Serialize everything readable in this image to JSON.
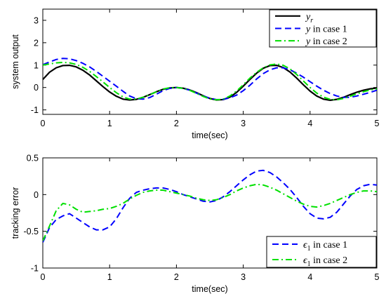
{
  "chart_data": [
    {
      "type": "line",
      "xlabel": "time(sec)",
      "ylabel": "system output",
      "xlim": [
        0,
        5
      ],
      "ylim": [
        -1.2,
        3.5
      ],
      "xticks": [
        0,
        1,
        2,
        3,
        4,
        5
      ],
      "yticks": [
        -1,
        0,
        1,
        2,
        3
      ],
      "grid": false,
      "legend_position": "top-right",
      "series": [
        {
          "name": "y_r",
          "legend": {
            "main": "y",
            "sub": "r",
            "suffix": ""
          },
          "color": "#000000",
          "style": "solid",
          "x": [
            0,
            0.1,
            0.2,
            0.3,
            0.4,
            0.5,
            0.6,
            0.7,
            0.8,
            0.9,
            1.0,
            1.1,
            1.2,
            1.3,
            1.4,
            1.5,
            1.6,
            1.7,
            1.8,
            1.9,
            2.0,
            2.1,
            2.2,
            2.3,
            2.4,
            2.5,
            2.6,
            2.7,
            2.8,
            2.9,
            3.0,
            3.1,
            3.2,
            3.3,
            3.4,
            3.5,
            3.6,
            3.7,
            3.8,
            3.9,
            4.0,
            4.1,
            4.2,
            4.3,
            4.4,
            4.5,
            4.6,
            4.7,
            4.8,
            4.9,
            5.0
          ],
          "y": [
            0.36,
            0.68,
            0.88,
            0.98,
            0.99,
            0.92,
            0.77,
            0.56,
            0.3,
            0.04,
            -0.2,
            -0.39,
            -0.52,
            -0.56,
            -0.53,
            -0.44,
            -0.32,
            -0.19,
            -0.08,
            -0.02,
            0.0,
            -0.03,
            -0.11,
            -0.23,
            -0.37,
            -0.49,
            -0.56,
            -0.54,
            -0.43,
            -0.22,
            0.06,
            0.36,
            0.64,
            0.86,
            0.98,
            0.99,
            0.89,
            0.69,
            0.42,
            0.12,
            -0.16,
            -0.38,
            -0.52,
            -0.57,
            -0.53,
            -0.44,
            -0.32,
            -0.21,
            -0.12,
            -0.06,
            -0.02
          ]
        },
        {
          "name": "y in case 1",
          "legend": {
            "main": "y",
            "sub": "",
            "suffix": " in case 1"
          },
          "color": "#0000ff",
          "style": "dashed",
          "x": [
            0,
            0.1,
            0.2,
            0.3,
            0.4,
            0.5,
            0.6,
            0.7,
            0.8,
            0.9,
            1.0,
            1.1,
            1.2,
            1.3,
            1.4,
            1.5,
            1.6,
            1.7,
            1.8,
            1.9,
            2.0,
            2.1,
            2.2,
            2.3,
            2.4,
            2.5,
            2.6,
            2.7,
            2.8,
            2.9,
            3.0,
            3.1,
            3.2,
            3.3,
            3.4,
            3.5,
            3.6,
            3.7,
            3.8,
            3.9,
            4.0,
            4.1,
            4.2,
            4.3,
            4.4,
            4.5,
            4.6,
            4.7,
            4.8,
            4.9,
            5.0
          ],
          "y": [
            1.02,
            1.14,
            1.25,
            1.3,
            1.28,
            1.2,
            1.08,
            0.92,
            0.72,
            0.5,
            0.28,
            0.06,
            -0.17,
            -0.38,
            -0.5,
            -0.52,
            -0.45,
            -0.3,
            -0.14,
            -0.04,
            0.0,
            -0.04,
            -0.12,
            -0.25,
            -0.38,
            -0.48,
            -0.54,
            -0.53,
            -0.46,
            -0.34,
            -0.14,
            0.1,
            0.38,
            0.62,
            0.79,
            0.88,
            0.88,
            0.79,
            0.64,
            0.46,
            0.26,
            0.06,
            -0.12,
            -0.27,
            -0.38,
            -0.44,
            -0.44,
            -0.38,
            -0.3,
            -0.22,
            -0.12
          ]
        },
        {
          "name": "y in case 2",
          "legend": {
            "main": "y",
            "sub": "",
            "suffix": " in case 2"
          },
          "color": "#00e000",
          "style": "dashdot",
          "x": [
            0,
            0.1,
            0.2,
            0.3,
            0.4,
            0.5,
            0.6,
            0.7,
            0.8,
            0.9,
            1.0,
            1.1,
            1.2,
            1.3,
            1.4,
            1.5,
            1.6,
            1.7,
            1.8,
            1.9,
            2.0,
            2.1,
            2.2,
            2.3,
            2.4,
            2.5,
            2.6,
            2.7,
            2.8,
            2.9,
            3.0,
            3.1,
            3.2,
            3.3,
            3.4,
            3.5,
            3.6,
            3.7,
            3.8,
            3.9,
            4.0,
            4.1,
            4.2,
            4.3,
            4.4,
            4.5,
            4.6,
            4.7,
            4.8,
            4.9,
            5.0
          ],
          "y": [
            1.0,
            1.05,
            1.1,
            1.12,
            1.1,
            1.03,
            0.9,
            0.72,
            0.49,
            0.25,
            0.0,
            -0.23,
            -0.42,
            -0.52,
            -0.52,
            -0.44,
            -0.32,
            -0.19,
            -0.07,
            -0.01,
            0.0,
            -0.04,
            -0.13,
            -0.26,
            -0.4,
            -0.51,
            -0.55,
            -0.52,
            -0.38,
            -0.16,
            0.12,
            0.42,
            0.68,
            0.88,
            1.01,
            1.05,
            0.99,
            0.83,
            0.58,
            0.29,
            0.0,
            -0.25,
            -0.43,
            -0.53,
            -0.55,
            -0.49,
            -0.39,
            -0.28,
            -0.19,
            -0.11,
            -0.06
          ]
        }
      ]
    },
    {
      "type": "line",
      "xlabel": "time(sec)",
      "ylabel": "tracking error",
      "xlim": [
        0,
        5
      ],
      "ylim": [
        -1,
        0.5
      ],
      "xticks": [
        0,
        1,
        2,
        3,
        4,
        5
      ],
      "yticks": [
        -1,
        -0.5,
        0,
        0.5
      ],
      "grid": false,
      "legend_position": "bottom-right",
      "series": [
        {
          "name": "ε1 in case 1",
          "legend": {
            "main": "ϵ",
            "sub": "1",
            "suffix": " in case 1"
          },
          "color": "#0000ff",
          "style": "dashed",
          "x": [
            0,
            0.1,
            0.2,
            0.3,
            0.4,
            0.5,
            0.6,
            0.7,
            0.8,
            0.9,
            1.0,
            1.1,
            1.2,
            1.3,
            1.4,
            1.5,
            1.6,
            1.7,
            1.8,
            1.9,
            2.0,
            2.1,
            2.2,
            2.3,
            2.4,
            2.5,
            2.6,
            2.7,
            2.8,
            2.9,
            3.0,
            3.1,
            3.2,
            3.3,
            3.4,
            3.5,
            3.6,
            3.7,
            3.8,
            3.9,
            4.0,
            4.1,
            4.2,
            4.3,
            4.4,
            4.5,
            4.6,
            4.7,
            4.8,
            4.9,
            5.0
          ],
          "y": [
            -0.65,
            -0.45,
            -0.34,
            -0.29,
            -0.26,
            -0.32,
            -0.38,
            -0.44,
            -0.48,
            -0.48,
            -0.44,
            -0.33,
            -0.18,
            -0.05,
            0.03,
            0.06,
            0.08,
            0.09,
            0.09,
            0.07,
            0.04,
            0.0,
            -0.03,
            -0.06,
            -0.09,
            -0.1,
            -0.08,
            -0.03,
            0.04,
            0.12,
            0.2,
            0.27,
            0.32,
            0.33,
            0.3,
            0.24,
            0.16,
            0.07,
            -0.04,
            -0.16,
            -0.26,
            -0.32,
            -0.33,
            -0.31,
            -0.24,
            -0.13,
            -0.02,
            0.07,
            0.12,
            0.14,
            0.13
          ]
        },
        {
          "name": "ε1 in case 2",
          "legend": {
            "main": "ϵ",
            "sub": "1",
            "suffix": " in case 2"
          },
          "color": "#00e000",
          "style": "dashdot",
          "x": [
            0,
            0.1,
            0.2,
            0.3,
            0.4,
            0.5,
            0.6,
            0.7,
            0.8,
            0.9,
            1.0,
            1.1,
            1.2,
            1.3,
            1.4,
            1.5,
            1.6,
            1.7,
            1.8,
            1.9,
            2.0,
            2.1,
            2.2,
            2.3,
            2.4,
            2.5,
            2.6,
            2.7,
            2.8,
            2.9,
            3.0,
            3.1,
            3.2,
            3.3,
            3.4,
            3.5,
            3.6,
            3.7,
            3.8,
            3.9,
            4.0,
            4.1,
            4.2,
            4.3,
            4.4,
            4.5,
            4.6,
            4.7,
            4.8,
            4.9,
            5.0
          ],
          "y": [
            -0.63,
            -0.43,
            -0.22,
            -0.12,
            -0.14,
            -0.2,
            -0.24,
            -0.23,
            -0.22,
            -0.2,
            -0.19,
            -0.16,
            -0.12,
            -0.06,
            -0.01,
            0.03,
            0.05,
            0.06,
            0.06,
            0.04,
            0.02,
            0.0,
            -0.02,
            -0.05,
            -0.07,
            -0.08,
            -0.07,
            -0.04,
            0.0,
            0.05,
            0.09,
            0.12,
            0.14,
            0.13,
            0.1,
            0.06,
            0.01,
            -0.04,
            -0.09,
            -0.13,
            -0.16,
            -0.17,
            -0.15,
            -0.12,
            -0.08,
            -0.04,
            0.0,
            0.03,
            0.05,
            0.05,
            0.04
          ]
        }
      ]
    }
  ]
}
